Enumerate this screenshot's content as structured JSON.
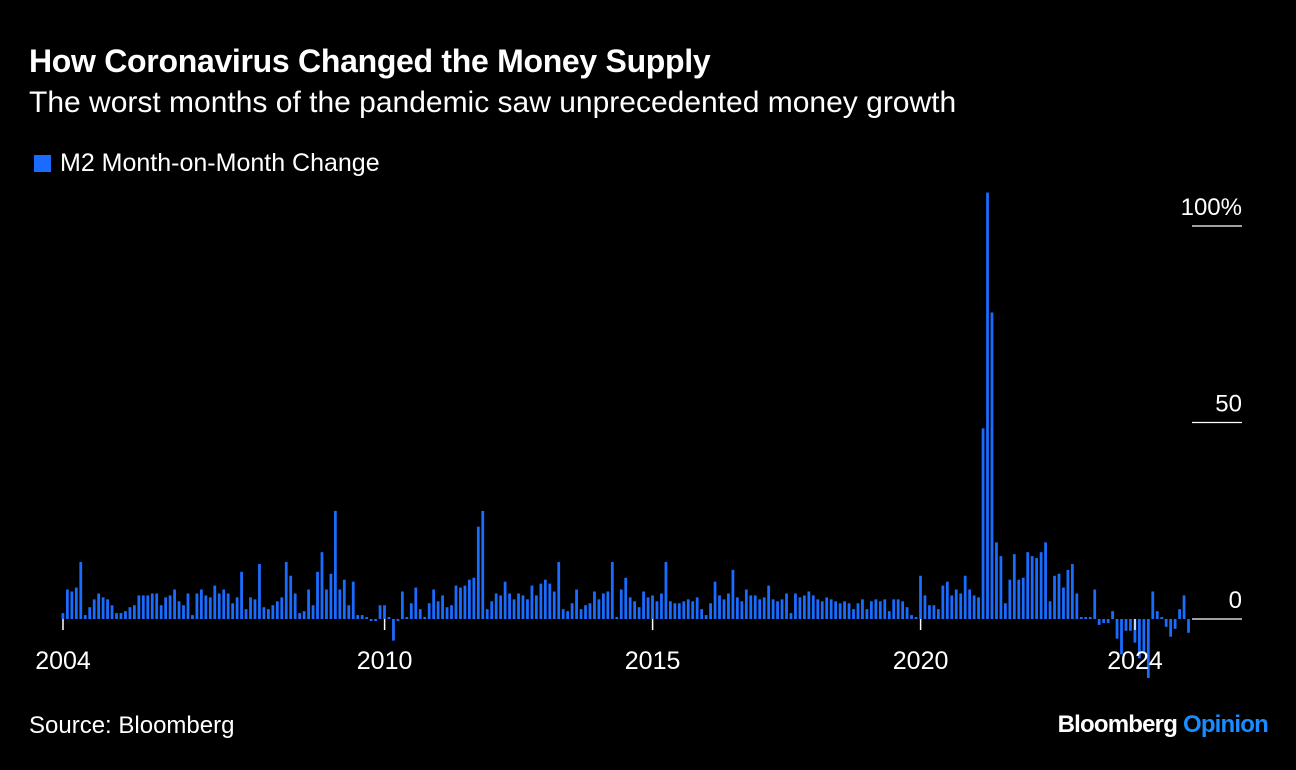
{
  "title": "How Coronavirus Changed the Money Supply",
  "subtitle": "The worst months of the pandemic saw unprecedented money growth",
  "source": "Source: Bloomberg",
  "brand": {
    "name": "Bloomberg",
    "suffix": "Opinion"
  },
  "colors": {
    "bar": "#1a6cff",
    "accent": "#1a8cff",
    "background": "#000000",
    "text": "#ffffff"
  },
  "chart_data": {
    "type": "bar",
    "legend": [
      "M2 Month-on-Month Change"
    ],
    "legend_position": "top-left",
    "x_tick_labels": [
      "2004",
      "2010",
      "2015",
      "2020",
      "2024"
    ],
    "y_tick_labels": [
      "100%",
      "50",
      "0"
    ],
    "y_ticks": [
      100,
      50,
      0
    ],
    "ylim": [
      -12,
      110
    ],
    "x_range": [
      2004.0,
      2024.0
    ],
    "grid": false,
    "series": [
      {
        "name": "M2 Month-on-Month Change",
        "start": "2004-01",
        "frequency": "monthly",
        "values": [
          1.5,
          7.5,
          7,
          8,
          14.5,
          1,
          3,
          5,
          6.5,
          5.5,
          5,
          3.5,
          1.5,
          1.5,
          2,
          3,
          3.5,
          6,
          6,
          6,
          6.5,
          6.5,
          3.5,
          5.5,
          6,
          7.5,
          4.5,
          3.5,
          6.5,
          1,
          6.5,
          7.5,
          6,
          5.5,
          8.5,
          6.5,
          7.5,
          6.5,
          4,
          5.5,
          12,
          2.5,
          5.5,
          5,
          14,
          3,
          2.5,
          3.5,
          4.5,
          5.5,
          14.5,
          11,
          6.5,
          1.5,
          2,
          7.5,
          3.5,
          12,
          17,
          7.5,
          11.5,
          27.5,
          7.5,
          10,
          3.5,
          9.5,
          1,
          1,
          0.5,
          -0.5,
          -0.5,
          3.5,
          3.5,
          0.5,
          -5.5,
          -0.5,
          7,
          0.5,
          4,
          8,
          2.5,
          0.5,
          4,
          7.5,
          4.5,
          6,
          3,
          3.5,
          8.5,
          8,
          8.5,
          10,
          10.5,
          23.5,
          27.5,
          2.5,
          4.5,
          6.5,
          6,
          9.5,
          6.5,
          5,
          6.5,
          6,
          5,
          8.5,
          6,
          9,
          10,
          9,
          7,
          14.5,
          2.5,
          2,
          4,
          7.5,
          2.5,
          3.5,
          4,
          7,
          5,
          6.5,
          7,
          14.5,
          0.5,
          7.5,
          10.5,
          5.5,
          4.5,
          3,
          7,
          5.5,
          6,
          4.5,
          6.5,
          14.5,
          4.5,
          4,
          4,
          4.5,
          5,
          4.5,
          5.5,
          2.5,
          1,
          4,
          9.5,
          6,
          5,
          6.5,
          12.5,
          5.5,
          4.5,
          7.5,
          6,
          6,
          5,
          5.5,
          8.5,
          5,
          4.5,
          5,
          6.5,
          1.5,
          6.5,
          5.5,
          6,
          7,
          6,
          5,
          4.5,
          5.5,
          5,
          4.5,
          4,
          4.5,
          4,
          2.5,
          4,
          5,
          2.5,
          4.5,
          5,
          4.5,
          5,
          2,
          5,
          5,
          4.5,
          3,
          1,
          0.5,
          11,
          6,
          3.5,
          3.5,
          2.5,
          8.5,
          9.5,
          6,
          7.5,
          6.5,
          11,
          7.5,
          6,
          5.5,
          48.5,
          108.5,
          78,
          19.5,
          16,
          4,
          10,
          16.5,
          10,
          10.5,
          17,
          16,
          15.5,
          17,
          19.5,
          4.5,
          11,
          11.5,
          8,
          12.5,
          14,
          6.5,
          0.5,
          0.5,
          0.5,
          7.5,
          -1.5,
          -1,
          -1,
          2,
          -5,
          -9,
          -3,
          -3,
          -6,
          -10,
          -8.5,
          -15,
          7,
          2,
          0.5,
          -2,
          -4.5,
          -2.5,
          2.5,
          6,
          -3.5
        ]
      }
    ]
  }
}
